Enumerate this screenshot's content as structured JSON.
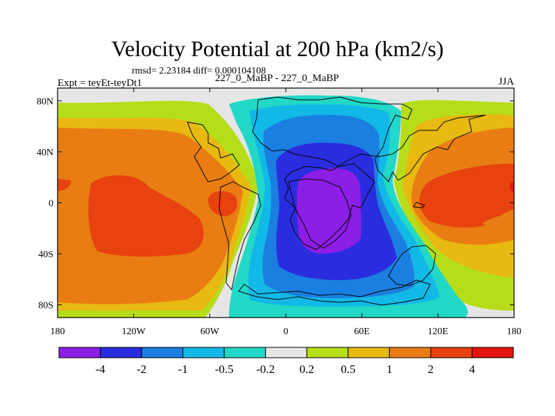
{
  "title": "Velocity Potential at 200 hPa (km2/s)",
  "stats": "rmsd= 2.23184 diff= 0.000104108",
  "subtitle_left": "Expt = teyEt-teyDt1",
  "subtitle_center": "227_0_MaBP - 227_0_MaBP",
  "subtitle_right": "JJA",
  "chart_data": {
    "type": "heatmap",
    "title": "Velocity Potential at 200 hPa (km2/s)",
    "units": "km2/s",
    "x_ticks": [
      "180",
      "120W",
      "60W",
      "0",
      "60E",
      "120E",
      "180"
    ],
    "x_tick_values": [
      -180,
      -120,
      -60,
      0,
      60,
      120,
      180
    ],
    "y_ticks": [
      "80N",
      "40N",
      "0",
      "40S",
      "80S"
    ],
    "y_tick_values": [
      80,
      40,
      0,
      -40,
      -80
    ],
    "xlim": [
      -180,
      180
    ],
    "ylim": [
      -90,
      90
    ],
    "levels": [
      "-4",
      "-2",
      "-1",
      "-0.5",
      "-0.2",
      "0.2",
      "0.5",
      "1",
      "2",
      "4"
    ],
    "colors": [
      "#8c1ee6",
      "#2a2ddf",
      "#1a7fe0",
      "#12b9e6",
      "#22d8c6",
      "#e6e6e6",
      "#b5dd1a",
      "#e8b910",
      "#e97d13",
      "#e8420e",
      "#e2140e"
    ],
    "features": [
      {
        "name": "min",
        "center": [
          30,
          0
        ],
        "value_class": "< -4"
      },
      {
        "name": "max_west",
        "center": [
          -130,
          -10
        ],
        "value_class": "2 to 4"
      },
      {
        "name": "max_east",
        "center": [
          150,
          10
        ],
        "value_class": "2 to 4"
      },
      {
        "name": "max_small",
        "center": [
          -50,
          0
        ],
        "value_class": "2 to 4"
      }
    ]
  },
  "colors": {
    "frame": "#000000",
    "coast": "#000000",
    "background": "#ffffff"
  }
}
